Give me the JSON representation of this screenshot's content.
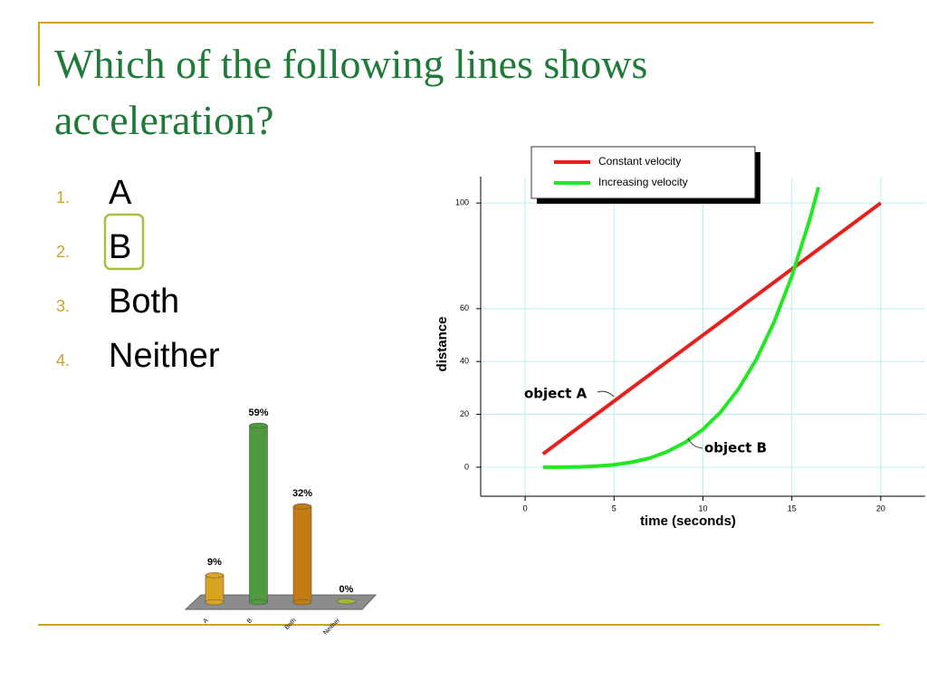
{
  "title": "Which of the following lines shows acceleration?",
  "list": [
    {
      "number": "1.",
      "text": "A"
    },
    {
      "number": "2.",
      "text": "B"
    },
    {
      "number": "3.",
      "text": "Both"
    },
    {
      "number": "4.",
      "text": "Neither"
    }
  ],
  "chart_data": [
    {
      "type": "bar",
      "categories": [
        "A",
        "B",
        "Both",
        "Neither"
      ],
      "values": [
        9,
        59,
        32,
        0
      ],
      "value_labels": [
        "9%",
        "59%",
        "32%",
        "0%"
      ],
      "colors": [
        "#d9a520",
        "#4e9a3c",
        "#c27c12",
        "#a9b432"
      ]
    },
    {
      "type": "line",
      "xlabel": "time (seconds)",
      "ylabel": "distance",
      "xlim": [
        -2.5,
        22.5
      ],
      "ylim": [
        -11,
        110
      ],
      "xticks": [
        0,
        5,
        10,
        15,
        20
      ],
      "yticks": [
        0,
        20,
        40,
        60,
        100
      ],
      "grid": true,
      "series": [
        {
          "name": "Constant velocity",
          "color": "#e8201c",
          "x": [
            1,
            20
          ],
          "values": [
            5,
            100
          ]
        },
        {
          "name": "Increasing velocity",
          "color": "#22e822",
          "x": [
            1,
            2,
            3,
            4,
            5,
            6,
            7,
            8,
            9,
            10,
            11,
            12,
            13,
            14,
            15,
            16,
            16.5
          ],
          "values": [
            0,
            0,
            0.1,
            0.4,
            0.9,
            1.9,
            3.4,
            5.9,
            9.4,
            14.3,
            20.9,
            29.6,
            40.8,
            54.9,
            72.3,
            93.6,
            106
          ]
        }
      ],
      "annotations": [
        "object A",
        "object B"
      ]
    }
  ]
}
